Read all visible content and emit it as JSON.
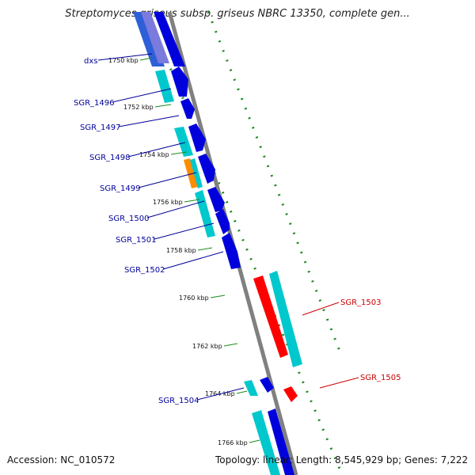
{
  "title": "Streptomyces griseus subsp. griseus NBRC 13350, complete gen...",
  "footer": {
    "accession": "Accession: NC_010572",
    "topology": "Topology: linear; Length: 8,545,929 bp; Genes: 7,222"
  },
  "ticks": [
    {
      "label": "1750 kbp"
    },
    {
      "label": "1752 kbp"
    },
    {
      "label": "1754 kbp"
    },
    {
      "label": "1756 kbp"
    },
    {
      "label": "1758 kbp"
    },
    {
      "label": "1760 kbp"
    },
    {
      "label": "1762 kbp"
    },
    {
      "label": "1764 kbp"
    },
    {
      "label": "1766 kbp"
    }
  ],
  "genes": [
    {
      "name": "dxs",
      "color": "#000099"
    },
    {
      "name": "SGR_1496",
      "color": "#000099"
    },
    {
      "name": "SGR_1497",
      "color": "#000099"
    },
    {
      "name": "SGR_1498",
      "color": "#000099"
    },
    {
      "name": "SGR_1499",
      "color": "#000099"
    },
    {
      "name": "SGR_1500",
      "color": "#000099"
    },
    {
      "name": "SGR_1501",
      "color": "#000099"
    },
    {
      "name": "SGR_1502",
      "color": "#000099"
    },
    {
      "name": "SGR_1504",
      "color": "#000099"
    },
    {
      "name": "SGR_1503",
      "color": "#cc0000"
    },
    {
      "name": "SGR_1505",
      "color": "#cc0000"
    }
  ],
  "colors": {
    "forward_cds": "#0000dd",
    "reverse_cds": "#ff0000",
    "cds_shadow": "#00c8cc",
    "rna_orange": "#ff8c00",
    "sequence_backbone": "#808080",
    "tick_dots": "#1a8a1a"
  }
}
